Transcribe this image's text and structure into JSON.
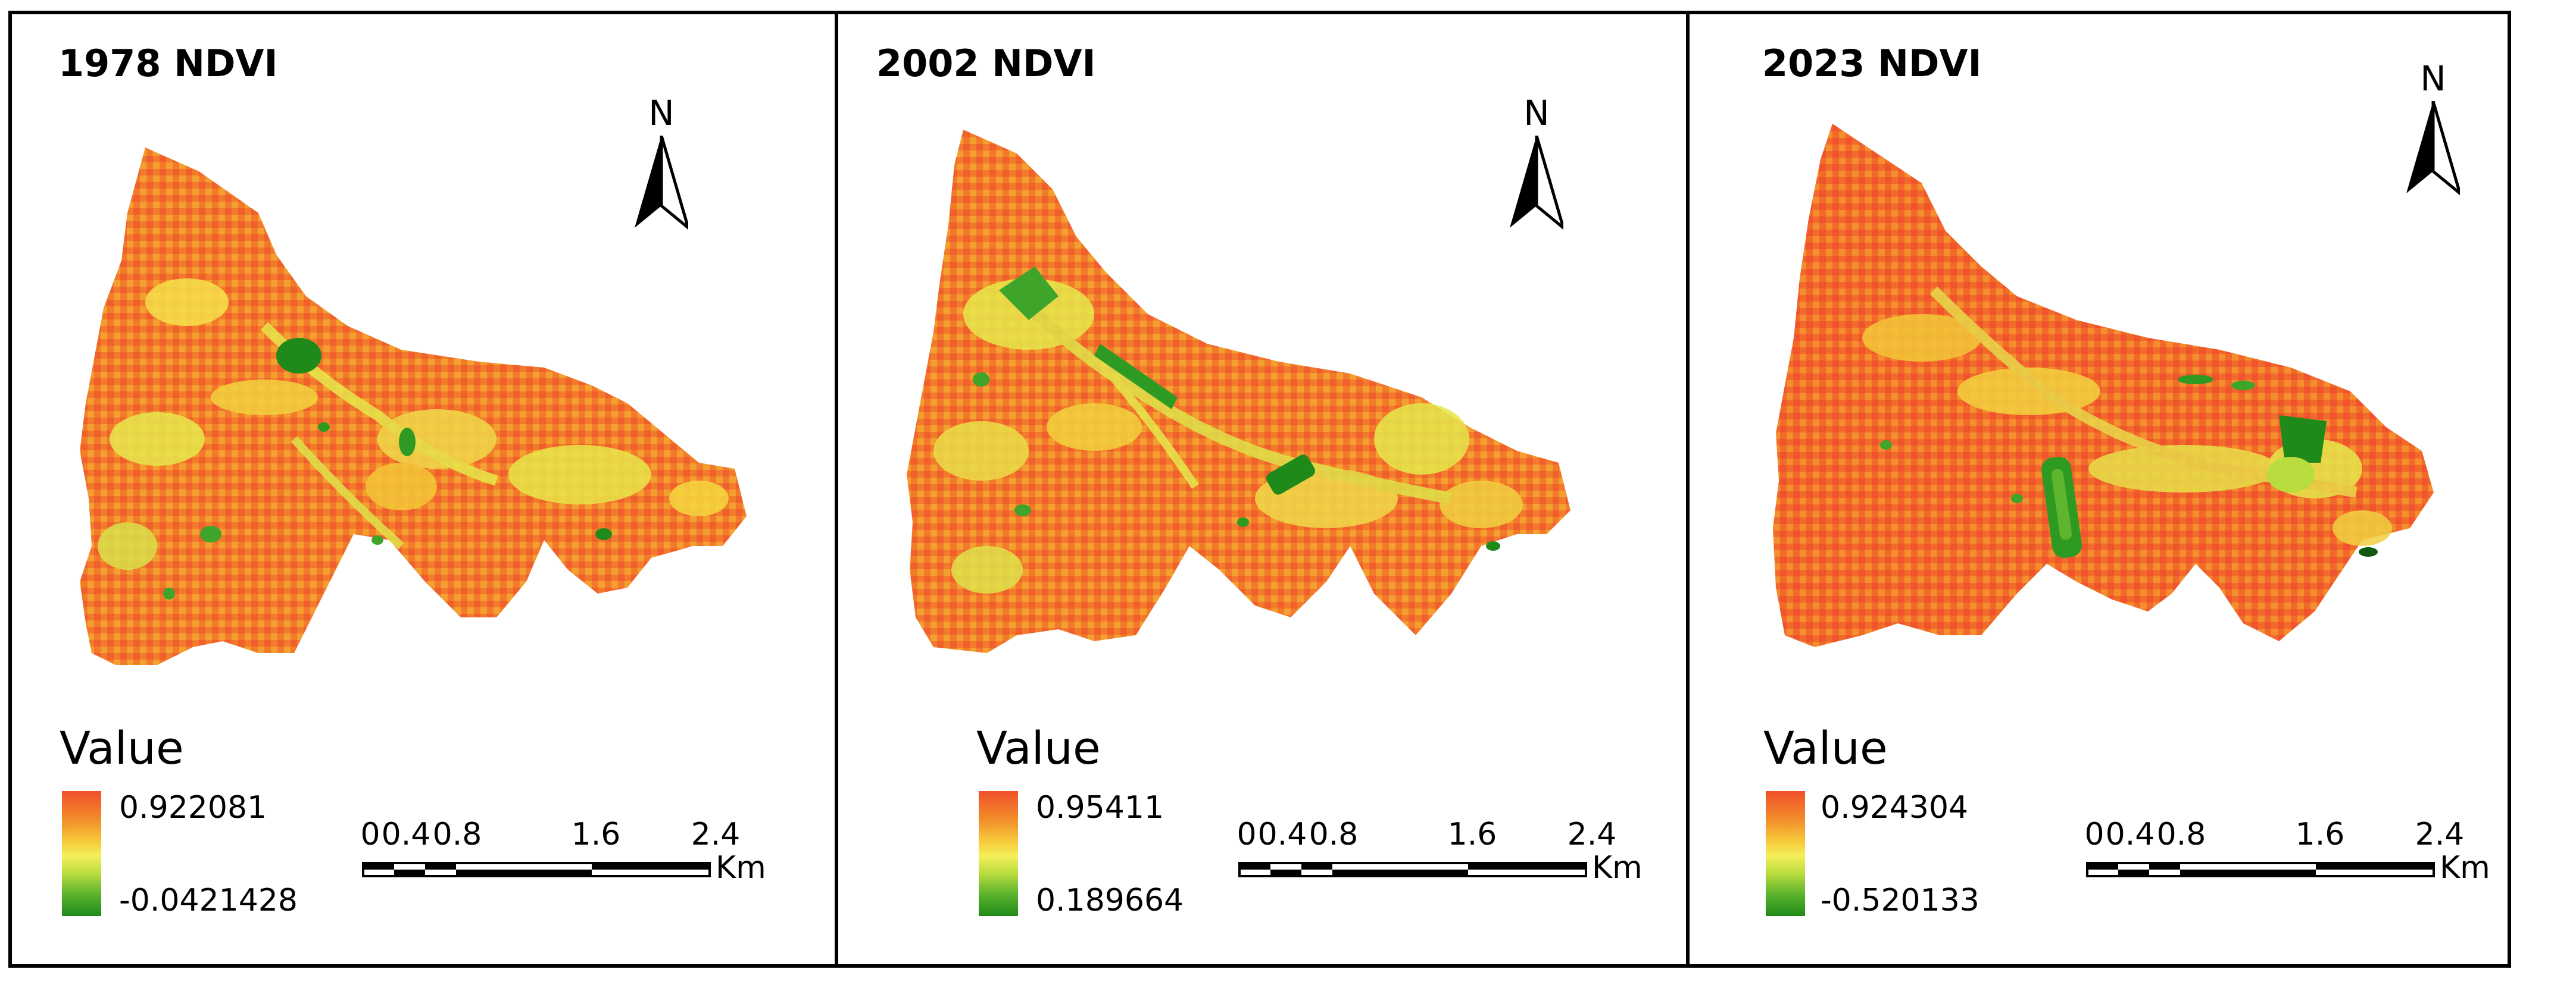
{
  "panels": [
    {
      "title": "1978 NDVI",
      "legend": {
        "title": "Value",
        "max": "0.922081",
        "min": "-0.0421428"
      },
      "north_label": "N",
      "scale": {
        "ticks": [
          "0",
          "0.4",
          "0.8",
          "1.6",
          "2.4"
        ],
        "unit": "Km"
      }
    },
    {
      "title": "2002 NDVI",
      "legend": {
        "title": "Value",
        "max": "0.95411",
        "min": "0.189664"
      },
      "north_label": "N",
      "scale": {
        "ticks": [
          "0",
          "0.4",
          "0.8",
          "1.6",
          "2.4"
        ],
        "unit": "Km"
      }
    },
    {
      "title": "2023 NDVI",
      "legend": {
        "title": "Value",
        "max": "0.924304",
        "min": "-0.520133"
      },
      "north_label": "N",
      "scale": {
        "ticks": [
          "0",
          "0.4",
          "0.8",
          "1.6",
          "2.4"
        ],
        "unit": "Km"
      }
    }
  ],
  "colors": {
    "ramp_high": "#f0502a",
    "ramp_mid": "#f4ef5a",
    "ramp_low": "#1f8a1a",
    "frame": "#000000"
  }
}
